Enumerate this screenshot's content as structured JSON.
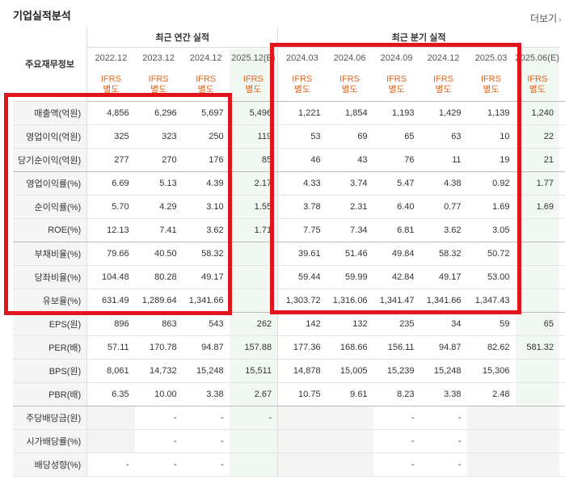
{
  "title": "기업실적분석",
  "more_label": "더보기",
  "header": {
    "metric_col_label": "주요재무정보",
    "annual_label": "최근 연간 실적",
    "quarter_label": "최근 분기 실적",
    "periods": [
      "2022.12",
      "2023.12",
      "2024.12",
      "2025.12(E)",
      "2024.03",
      "2024.06",
      "2024.09",
      "2024.12",
      "2025.03",
      "2025.06(E)"
    ],
    "ifrs": [
      "IFRS",
      "IFRS",
      "IFRS",
      "IFRS",
      "IFRS",
      "IFRS",
      "IFRS",
      "IFRS",
      "IFRS",
      "IFRS"
    ],
    "basis": [
      "별도",
      "별도",
      "별도",
      "별도",
      "별도",
      "별도",
      "별도",
      "별도",
      "별도",
      "별도"
    ]
  },
  "rows": [
    {
      "label": "매출액(억원)",
      "values": [
        "4,856",
        "6,296",
        "5,697",
        "5,496",
        "1,221",
        "1,854",
        "1,193",
        "1,429",
        "1,139",
        "1,240"
      ]
    },
    {
      "label": "영업이익(억원)",
      "values": [
        "325",
        "323",
        "250",
        "119",
        "53",
        "69",
        "65",
        "63",
        "10",
        "22"
      ]
    },
    {
      "label": "당기순이익(억원)",
      "values": [
        "277",
        "270",
        "176",
        "85",
        "46",
        "43",
        "76",
        "11",
        "19",
        "21"
      ]
    },
    {
      "label": "영업이익률(%)",
      "values": [
        "6.69",
        "5.13",
        "4.39",
        "2.17",
        "4.33",
        "3.74",
        "5.47",
        "4.38",
        "0.92",
        "1.77"
      ]
    },
    {
      "label": "순이익률(%)",
      "values": [
        "5.70",
        "4.29",
        "3.10",
        "1.55",
        "3.78",
        "2.31",
        "6.40",
        "0.77",
        "1.69",
        "1.69"
      ]
    },
    {
      "label": "ROE(%)",
      "values": [
        "12.13",
        "7.41",
        "3.62",
        "1.71",
        "7.75",
        "7.34",
        "6.81",
        "3.62",
        "3.05",
        ""
      ]
    },
    {
      "label": "부채비율(%)",
      "values": [
        "79.66",
        "40.50",
        "58.32",
        "",
        "39.61",
        "51.46",
        "49.84",
        "58.32",
        "50.72",
        ""
      ]
    },
    {
      "label": "당좌비율(%)",
      "values": [
        "104.48",
        "80.28",
        "49.17",
        "",
        "59.44",
        "59.99",
        "42.84",
        "49.17",
        "53.00",
        ""
      ]
    },
    {
      "label": "유보율(%)",
      "values": [
        "631.49",
        "1,289.64",
        "1,341.66",
        "",
        "1,303.72",
        "1,316.06",
        "1,341.47",
        "1,341.66",
        "1,347.43",
        ""
      ]
    },
    {
      "label": "EPS(원)",
      "values": [
        "896",
        "863",
        "543",
        "262",
        "142",
        "132",
        "235",
        "34",
        "59",
        "65"
      ]
    },
    {
      "label": "PER(배)",
      "values": [
        "57.11",
        "170.78",
        "94.87",
        "157.88",
        "177.36",
        "168.66",
        "156.11",
        "94.87",
        "82.62",
        "581.32"
      ]
    },
    {
      "label": "BPS(원)",
      "values": [
        "8,061",
        "14,732",
        "15,248",
        "15,511",
        "14,878",
        "15,005",
        "15,239",
        "15,248",
        "15,306",
        ""
      ]
    },
    {
      "label": "PBR(배)",
      "values": [
        "6.35",
        "10.00",
        "3.38",
        "2.67",
        "10.75",
        "9.61",
        "8.23",
        "3.38",
        "2.48",
        ""
      ]
    },
    {
      "label": "주당배당금(원)",
      "values": [
        "",
        "-",
        "-",
        "-",
        "",
        "",
        "-",
        "-",
        "",
        ""
      ]
    },
    {
      "label": "시가배당률(%)",
      "values": [
        "",
        "-",
        "-",
        "",
        "",
        "",
        "-",
        "-",
        "",
        ""
      ]
    },
    {
      "label": "배당성향(%)",
      "values": [
        "-",
        "-",
        "-",
        "",
        "",
        "",
        "-",
        "-",
        "",
        ""
      ]
    }
  ],
  "accent_color": "#e2141c",
  "ifrs_color": "#e8641b"
}
